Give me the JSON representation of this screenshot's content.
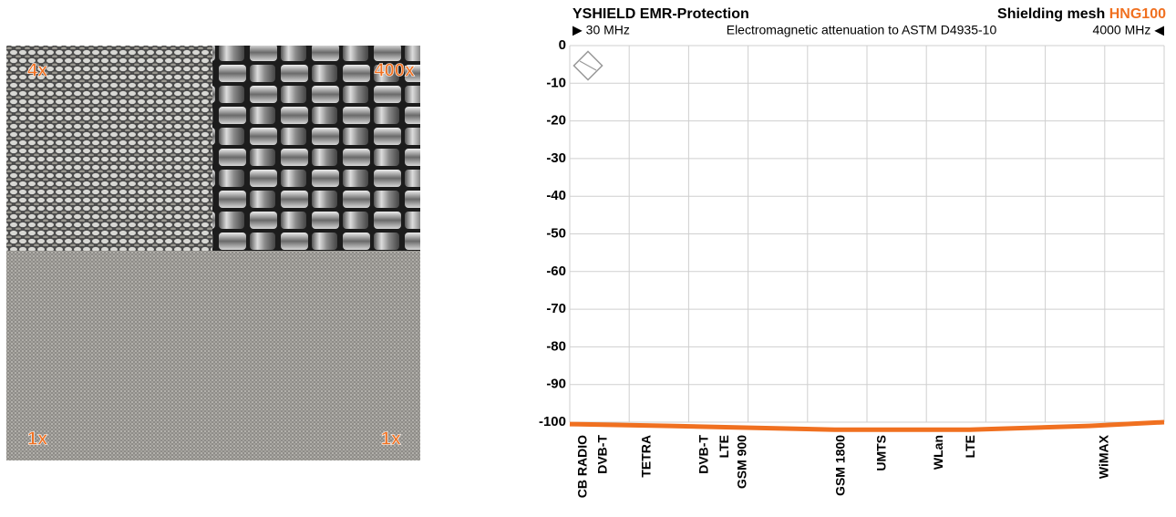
{
  "image": {
    "labels": [
      "4x",
      "400x",
      "1x",
      "1x"
    ]
  },
  "chart_data": {
    "type": "line",
    "title": "YSHIELD EMR-Protection",
    "product_prefix": "Shielding mesh",
    "product": "HNG100",
    "subtitle": "Electromagnetic attenuation to ASTM D4935-10",
    "x": [
      30,
      700,
      1800,
      2700,
      3500,
      4000
    ],
    "series": [
      {
        "name": "HNG100",
        "color": "#f07020",
        "values": [
          -100.5,
          -101,
          -102,
          -102,
          -101,
          -100
        ]
      }
    ],
    "xlim": [
      30,
      4000
    ],
    "xticks": [
      {
        "value": 30,
        "label": "▶ 30 MHz"
      },
      {
        "value": 4000,
        "label": "4000 MHz ◀"
      }
    ],
    "xgrid": [
      30,
      427,
      824,
      1221,
      1618,
      2015,
      2412,
      2809,
      3206,
      3603,
      4000
    ],
    "ylim": [
      -100,
      0
    ],
    "yticks": [
      0,
      -10,
      -20,
      -30,
      -40,
      -50,
      -60,
      -70,
      -80,
      -90,
      -100
    ],
    "grid": true,
    "bands": [
      {
        "label": "CB RADIO",
        "x": 90
      },
      {
        "label": "DVB-T",
        "x": 225
      },
      {
        "label": "TETRA",
        "x": 517
      },
      {
        "label": "DVB-T",
        "x": 901
      },
      {
        "label": "LTE",
        "x": 1035
      },
      {
        "label": "GSM 900",
        "x": 1156
      },
      {
        "label": "GSM 1800",
        "x": 1814
      },
      {
        "label": "UMTS",
        "x": 2088
      },
      {
        "label": "WLan",
        "x": 2466
      },
      {
        "label": "LTE",
        "x": 2679
      },
      {
        "label": "WiMAX",
        "x": 3574
      }
    ]
  }
}
